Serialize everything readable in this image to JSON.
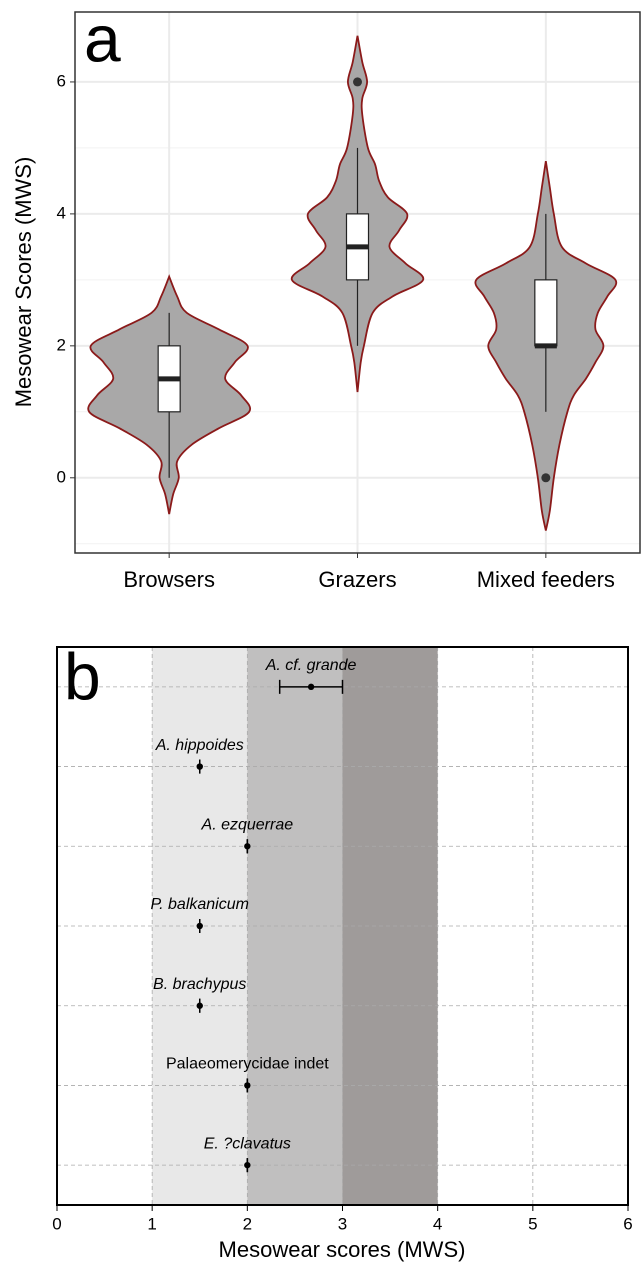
{
  "chart_data": [
    {
      "type": "violin",
      "panel_label": "a",
      "ylabel": "Mesowear Scores (MWS)",
      "categories": [
        "Browsers",
        "Grazers",
        "Mixed feeders"
      ],
      "ylim": [
        -1.14,
        7.06
      ],
      "yticks": [
        0,
        2,
        4,
        6
      ],
      "minor_grid": [
        -1,
        1,
        3,
        5
      ],
      "grid": true,
      "fill": "#a9a8a8",
      "edge_color": "#8b1a1a",
      "whisker_low": [
        0,
        2,
        1
      ],
      "q1": [
        1,
        3,
        2
      ],
      "median": [
        1.5,
        3.5,
        2
      ],
      "q3": [
        2,
        4,
        3
      ],
      "whisker_high": [
        2.5,
        5,
        4
      ],
      "outliers": [
        [],
        [
          6
        ],
        [
          0
        ]
      ],
      "violins": [
        {
          "y": [
            -0.55,
            -0.25,
            0,
            0.25,
            0.5,
            0.75,
            1,
            1.25,
            1.5,
            1.75,
            2,
            2.25,
            2.5,
            2.75,
            3.05
          ],
          "density": [
            0,
            0.05,
            0.12,
            0.1,
            0.28,
            0.62,
            1,
            0.9,
            0.7,
            0.82,
            0.98,
            0.62,
            0.22,
            0.1,
            0
          ]
        },
        {
          "y": [
            1.3,
            1.75,
            2,
            2.5,
            2.75,
            3,
            3.25,
            3.5,
            3.75,
            4,
            4.25,
            4.5,
            4.75,
            5,
            5.5,
            5.75,
            6,
            6.3,
            6.7
          ],
          "density": [
            0,
            0.04,
            0.08,
            0.19,
            0.44,
            0.82,
            0.6,
            0.4,
            0.52,
            0.62,
            0.38,
            0.27,
            0.22,
            0.13,
            0.06,
            0.06,
            0.12,
            0.06,
            0
          ]
        },
        {
          "y": [
            -0.8,
            -0.5,
            0,
            0.5,
            1,
            1.25,
            1.5,
            1.75,
            2,
            2.25,
            2.5,
            2.75,
            3,
            3.25,
            3.5,
            4,
            4.4,
            4.8
          ],
          "density": [
            0,
            0.05,
            0.1,
            0.17,
            0.27,
            0.35,
            0.5,
            0.62,
            0.72,
            0.62,
            0.65,
            0.77,
            0.87,
            0.5,
            0.2,
            0.1,
            0.05,
            0
          ]
        }
      ]
    },
    {
      "type": "errorbar",
      "panel_label": "b",
      "xlabel": "Mesowear scores (MWS)",
      "labels": [
        "A. cf. grande",
        "A. hippoides",
        "A. ezquerrae",
        "P. balkanicum",
        "B. brachypus",
        "Palaeomerycidae indet",
        "E. ?clavatus"
      ],
      "italic": [
        true,
        true,
        true,
        true,
        true,
        false,
        true
      ],
      "values": [
        2.67,
        1.5,
        2,
        1.5,
        1.5,
        2,
        2
      ],
      "errors": [
        0.33,
        0,
        0,
        0,
        0,
        0,
        0
      ],
      "xlim": [
        0,
        6
      ],
      "xticks": [
        0,
        1,
        2,
        3,
        4,
        5,
        6
      ],
      "grid": true,
      "point_color": "#000000",
      "bands": [
        {
          "from": 1,
          "to": 2,
          "color": "#e8e8e8"
        },
        {
          "from": 2,
          "to": 3,
          "color": "#c0bfbf"
        },
        {
          "from": 3,
          "to": 4,
          "color": "#9f9b9a"
        }
      ]
    }
  ]
}
